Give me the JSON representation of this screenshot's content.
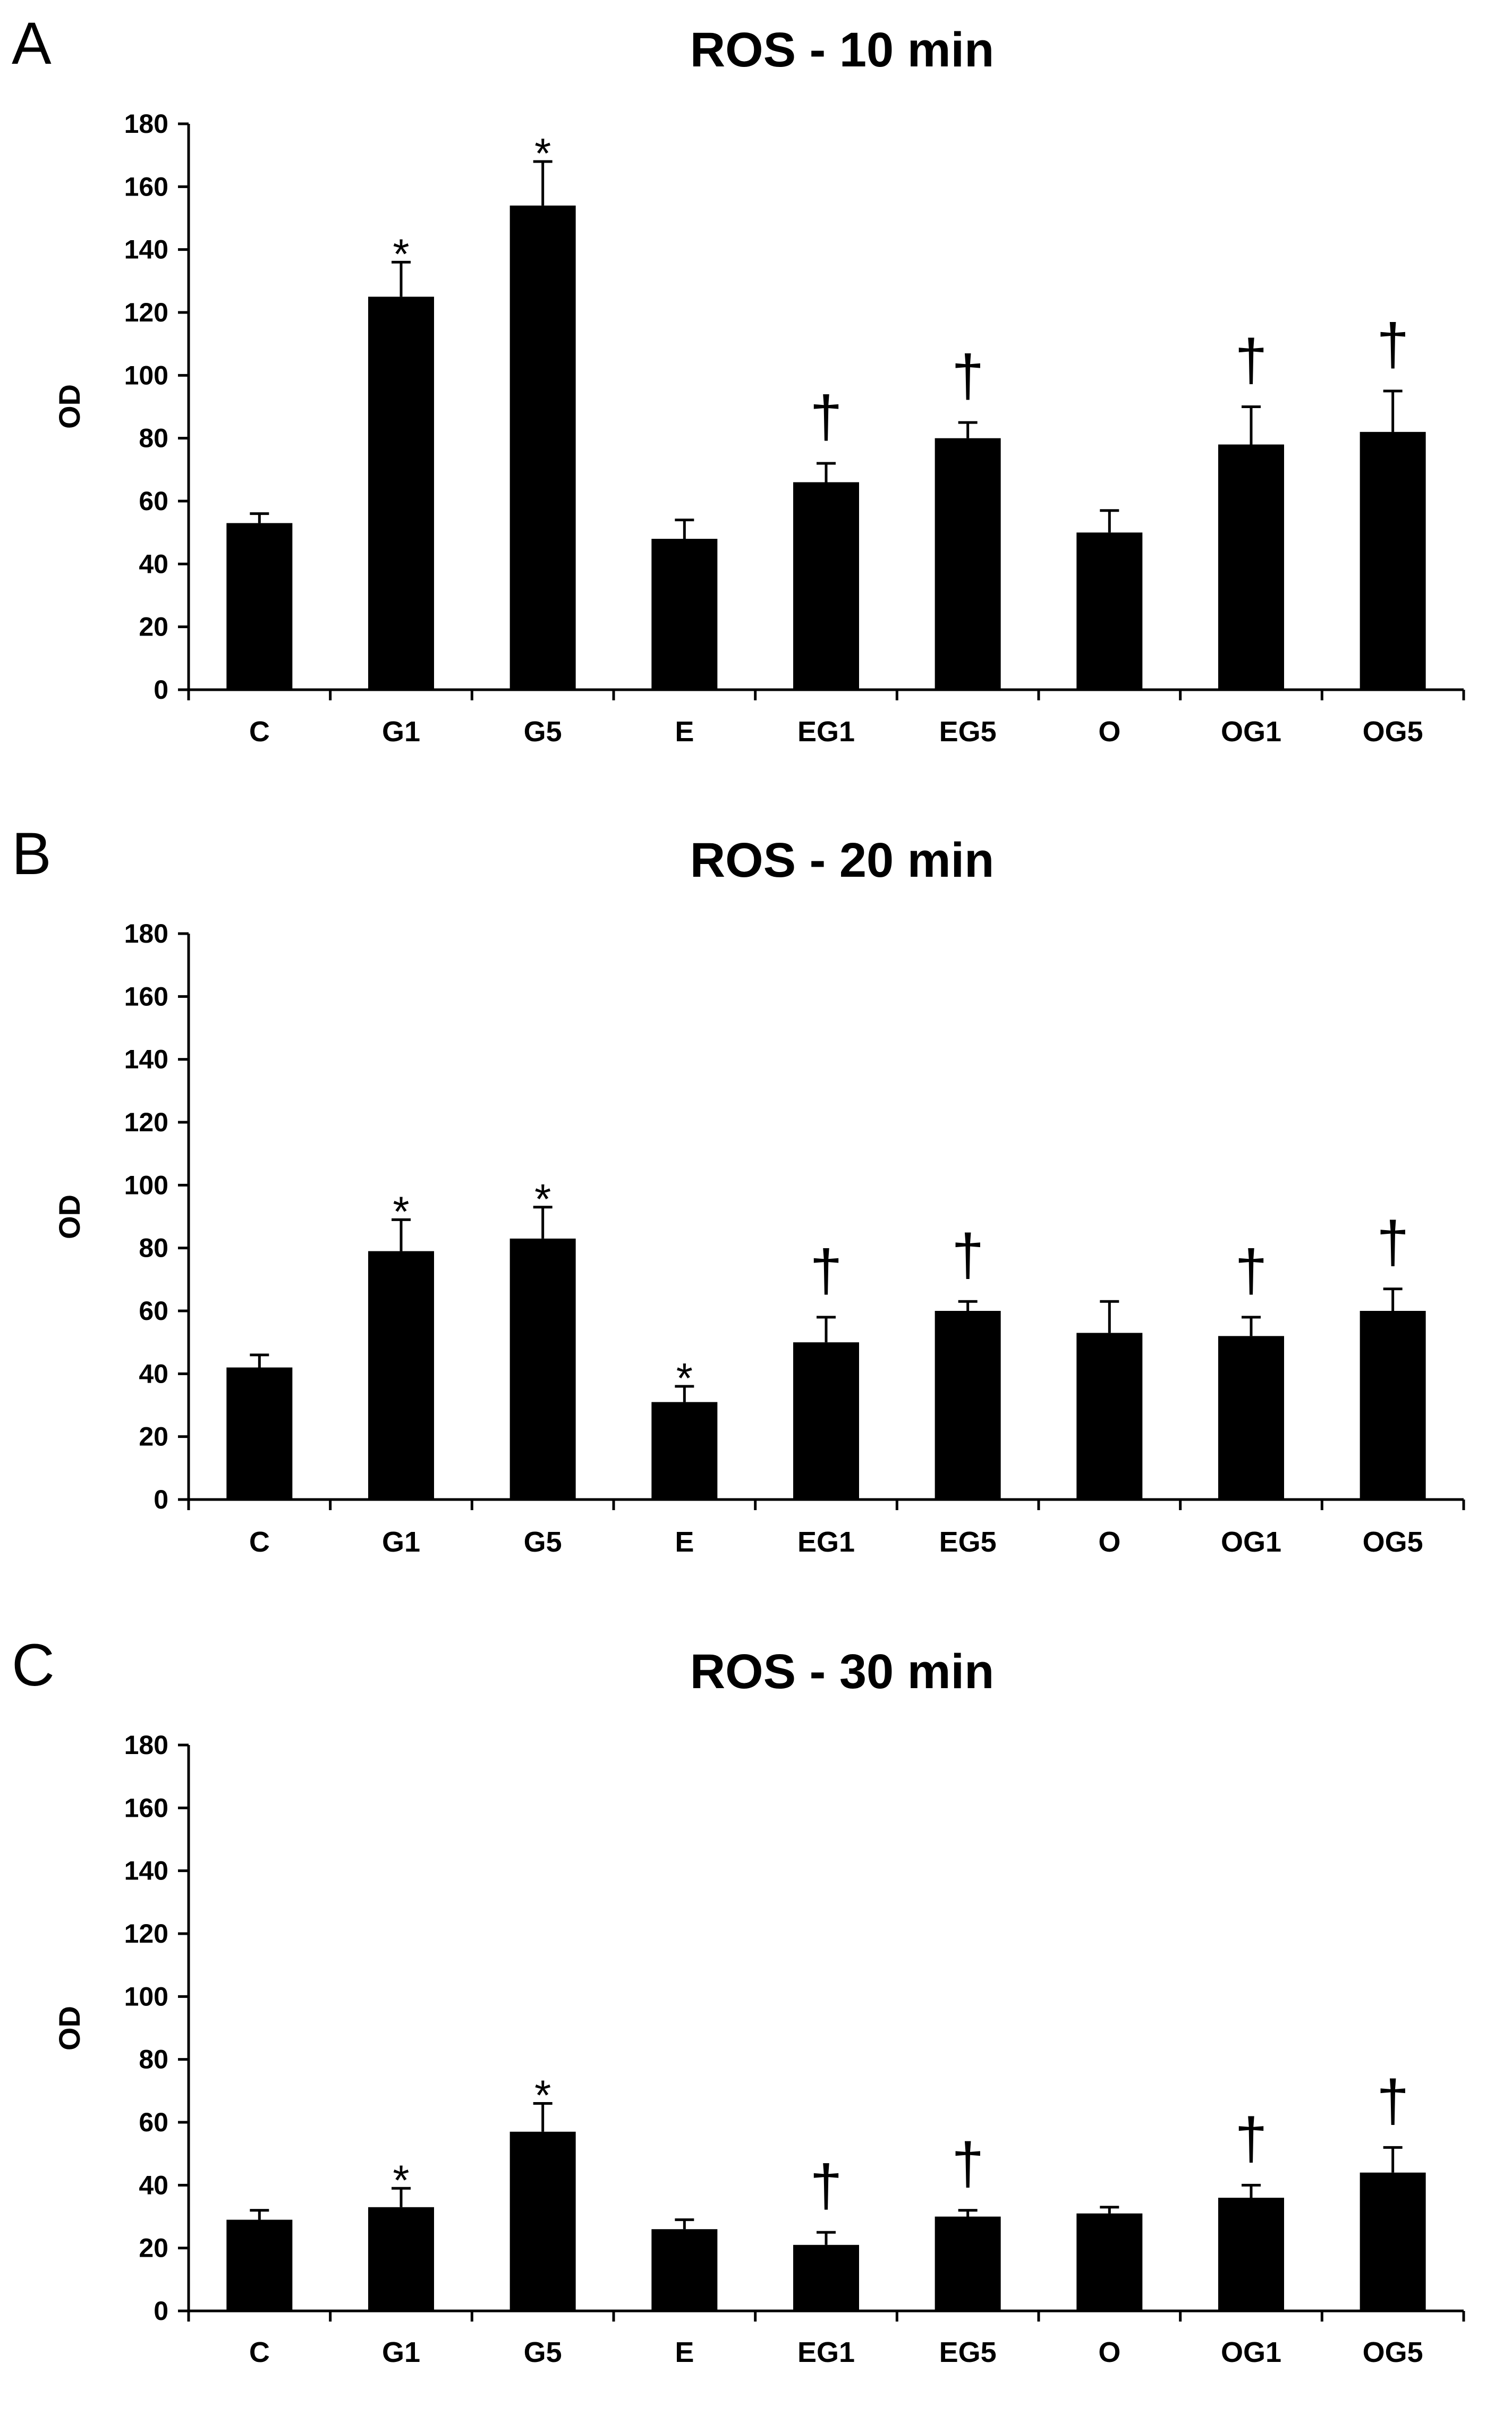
{
  "colors": {
    "bar": "#000000",
    "axis": "#000000",
    "background": "#ffffff"
  },
  "chart_data": [
    {
      "panel": "A",
      "type": "bar",
      "title": "ROS - 10 min",
      "xlabel": "",
      "ylabel": "OD",
      "ylim": [
        0,
        180
      ],
      "yticks": [
        "0",
        "20",
        "40",
        "60",
        "80",
        "100",
        "120",
        "140",
        "160",
        "180"
      ],
      "categories": [
        "C",
        "G1",
        "G5",
        "E",
        "EG1",
        "EG5",
        "O",
        "OG1",
        "OG5"
      ],
      "values": [
        53,
        125,
        154,
        48,
        66,
        80,
        50,
        78,
        82
      ],
      "errors": [
        3,
        11,
        14,
        6,
        6,
        5,
        7,
        12,
        13
      ],
      "marks": [
        "",
        "*",
        "*",
        "",
        "†",
        "†",
        "",
        "†",
        "†"
      ],
      "legend": "none",
      "grid": false
    },
    {
      "panel": "B",
      "type": "bar",
      "title": "ROS - 20 min",
      "xlabel": "",
      "ylabel": "OD",
      "ylim": [
        0,
        180
      ],
      "yticks": [
        "0",
        "20",
        "40",
        "60",
        "80",
        "100",
        "120",
        "140",
        "160",
        "180"
      ],
      "categories": [
        "C",
        "G1",
        "G5",
        "E",
        "EG1",
        "EG5",
        "O",
        "OG1",
        "OG5"
      ],
      "values": [
        42,
        79,
        83,
        31,
        50,
        60,
        53,
        52,
        60
      ],
      "errors": [
        4,
        10,
        10,
        5,
        8,
        3,
        10,
        6,
        7
      ],
      "marks": [
        "",
        "*",
        "*",
        "*",
        "†",
        "†",
        "",
        "†",
        "†"
      ],
      "legend": "none",
      "grid": false
    },
    {
      "panel": "C",
      "type": "bar",
      "title": "ROS - 30 min",
      "xlabel": "",
      "ylabel": "OD",
      "ylim": [
        0,
        180
      ],
      "yticks": [
        "0",
        "20",
        "40",
        "60",
        "80",
        "100",
        "120",
        "140",
        "160",
        "180"
      ],
      "categories": [
        "C",
        "G1",
        "G5",
        "E",
        "EG1",
        "EG5",
        "O",
        "OG1",
        "OG5"
      ],
      "values": [
        29,
        33,
        57,
        26,
        21,
        30,
        31,
        36,
        44
      ],
      "errors": [
        3,
        6,
        9,
        3,
        4,
        2,
        2,
        4,
        8
      ],
      "marks": [
        "",
        "*",
        "*",
        "",
        "†",
        "†",
        "",
        "†",
        "†"
      ],
      "legend": "none",
      "grid": false
    }
  ]
}
